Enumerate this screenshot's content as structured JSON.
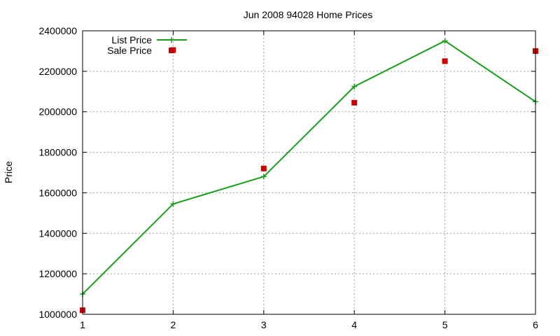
{
  "chart_data": {
    "type": "line",
    "title": "Jun 2008 94028 Home Prices",
    "xlabel": "",
    "ylabel": "Price",
    "xlim": [
      1,
      6
    ],
    "ylim": [
      1000000,
      2400000
    ],
    "x_ticks": [
      "1",
      "2",
      "3",
      "4",
      "5",
      "6"
    ],
    "y_ticks": [
      "1000000",
      "1200000",
      "1400000",
      "1600000",
      "1800000",
      "2000000",
      "2200000",
      "2400000"
    ],
    "grid": true,
    "legend_position": "top-left",
    "series": [
      {
        "name": "List Price",
        "style": "line+cross",
        "color": "#1a9e1a",
        "x": [
          1,
          2,
          3,
          4,
          5,
          6
        ],
        "values": [
          1100000,
          1545000,
          1680000,
          2125000,
          2350000,
          2050000
        ]
      },
      {
        "name": "Sale Price",
        "style": "square-points",
        "color": "#cc0000",
        "x": [
          1,
          2,
          3,
          4,
          5,
          6
        ],
        "values": [
          1020000,
          2305000,
          1720000,
          2045000,
          2250000,
          2300000
        ]
      }
    ]
  }
}
